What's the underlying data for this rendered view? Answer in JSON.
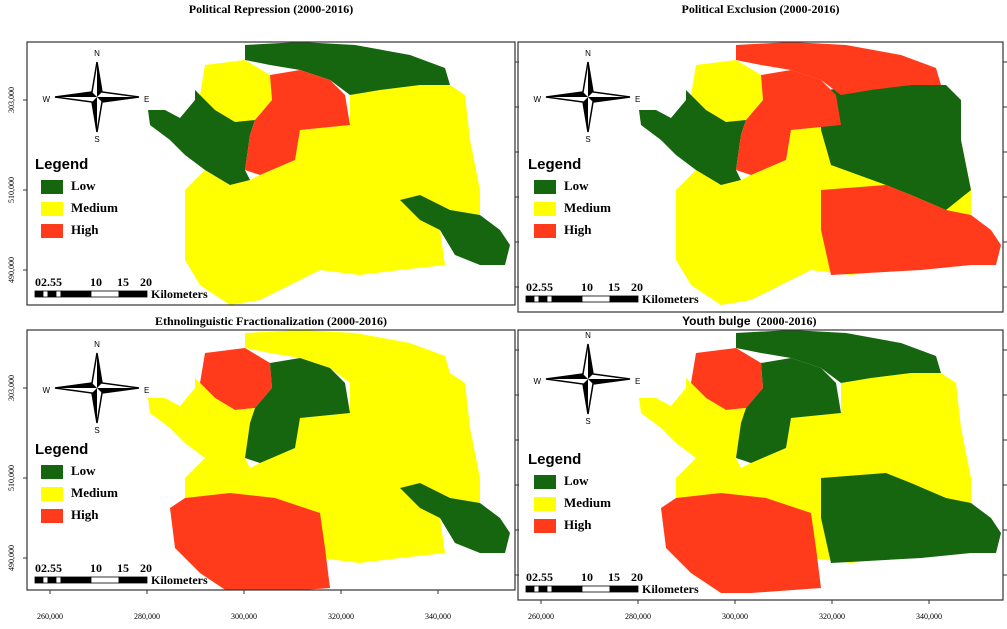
{
  "panels": [
    {
      "title": "Political Repression  (2000-2016)",
      "legend": {
        "title": "Legend",
        "items": [
          "Low",
          "Medium",
          "High"
        ]
      },
      "compass": {
        "n": "N",
        "s": "S",
        "e": "E",
        "w": "W"
      },
      "scale": {
        "labels": [
          "02.55",
          "10",
          "15",
          "20"
        ],
        "unit": "Kilometers"
      },
      "y_labels": [
        "303,000",
        "510,000",
        "490,000"
      ]
    },
    {
      "title": "Political Exclusion (2000-2016)",
      "legend": {
        "title": "Legend",
        "items": [
          "Low",
          "Medium",
          "High"
        ]
      },
      "compass": {
        "n": "N",
        "s": "S",
        "e": "E",
        "w": "W"
      },
      "scale": {
        "labels": [
          "02.55",
          "10",
          "15",
          "20"
        ],
        "unit": "Kilometers"
      }
    },
    {
      "title": "Ethnolinguistic Fractionalization (2000-2016)",
      "legend": {
        "title": "Legend",
        "items": [
          "Low",
          "Medium",
          "High"
        ]
      },
      "compass": {
        "n": "N",
        "s": "S",
        "e": "E",
        "w": "W"
      },
      "scale": {
        "labels": [
          "02.55",
          "10",
          "15",
          "20"
        ],
        "unit": "Kilometers"
      },
      "y_labels": [
        "303,000",
        "510,000",
        "490,000"
      ],
      "x_labels": [
        "260,000",
        "280,000",
        "300,000",
        "320,000",
        "340,000"
      ]
    },
    {
      "title": "Youth bulge",
      "subtitle": "(2000-2016)",
      "legend": {
        "title": "Legend",
        "items": [
          "Low",
          "Medium",
          "High"
        ]
      },
      "compass": {
        "n": "N",
        "s": "S",
        "e": "E",
        "w": "W"
      },
      "scale": {
        "labels": [
          "02.55",
          "10",
          "15",
          "20"
        ],
        "unit": "Kilometers"
      },
      "x_labels": [
        "260,000",
        "280,000",
        "300,000",
        "320,000",
        "340,000"
      ]
    }
  ]
}
